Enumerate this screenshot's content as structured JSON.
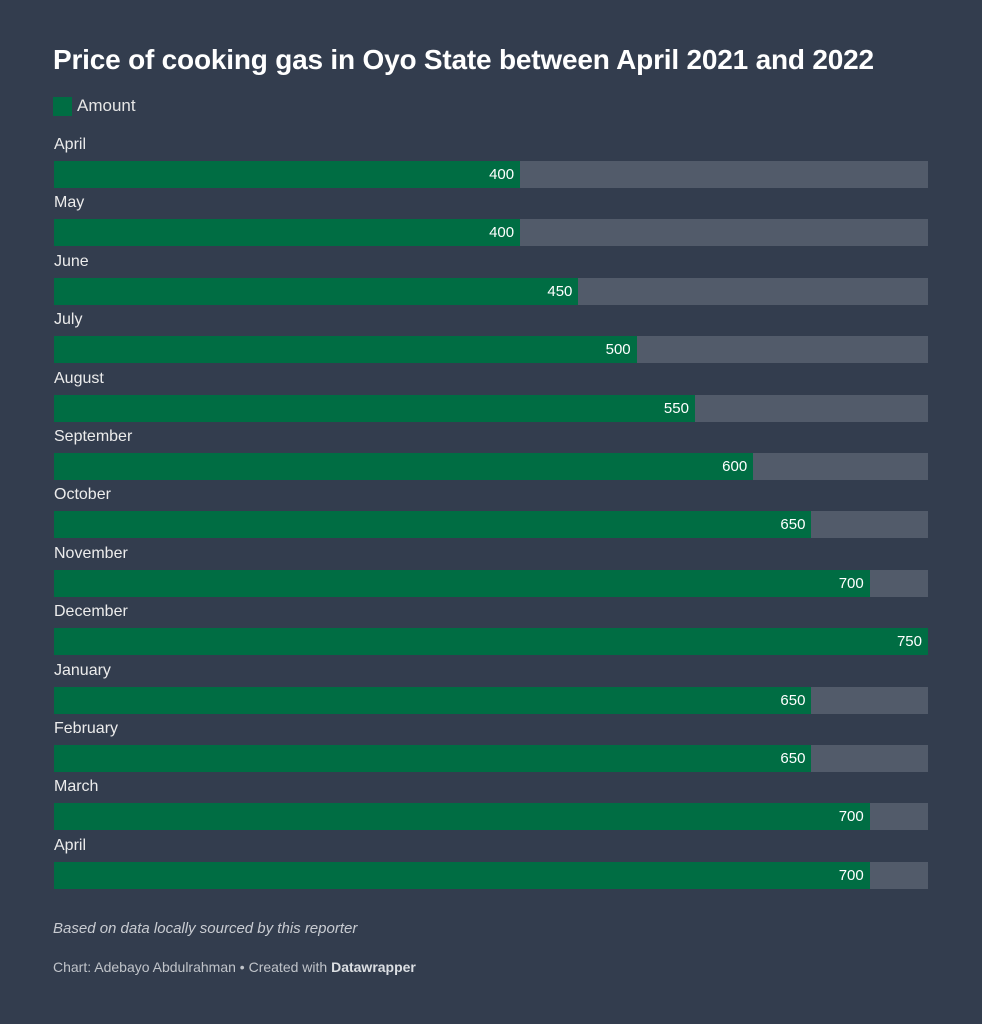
{
  "chart_data": {
    "type": "bar",
    "orientation": "horizontal",
    "title": "Price of cooking gas in Oyo State between April 2021 and 2022",
    "categories": [
      "April",
      "May",
      "June",
      "July",
      "August",
      "September",
      "October",
      "November",
      "December",
      "January",
      "February",
      "March",
      "April"
    ],
    "series": [
      {
        "name": "Amount",
        "color": "#006d43",
        "values": [
          400,
          400,
          450,
          500,
          550,
          600,
          650,
          700,
          750,
          650,
          650,
          700,
          700
        ]
      }
    ],
    "xlim": [
      0,
      750
    ],
    "xlabel": "",
    "ylabel": "",
    "grid": false,
    "legend_position": "top-left",
    "background_track_color": "#525b6a"
  },
  "header": {
    "title": "Price of cooking gas in Oyo State between April 2021 and 2022"
  },
  "legend": {
    "label": "Amount"
  },
  "footer": {
    "note": "Based on data locally sourced by this reporter",
    "credit_prefix": "Chart: Adebayo Abdulrahman • Created with ",
    "credit_tool": "Datawrapper"
  },
  "colors": {
    "background": "#333d4e",
    "bar": "#006d43",
    "track": "#525b6a"
  }
}
